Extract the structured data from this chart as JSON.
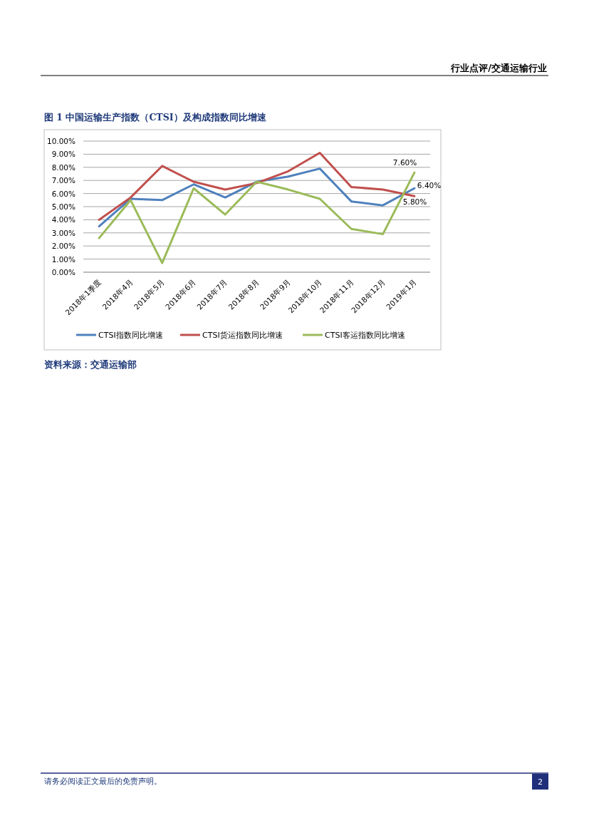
{
  "chart_data": {
    "type": "line",
    "title": "图 1 中国运输生产指数（CTSI）及构成指数同比增速",
    "categories": [
      "2018年1季度",
      "2018年4月",
      "2018年5月",
      "2018年6月",
      "2018年7月",
      "2018年8月",
      "2018年9月",
      "2018年10月",
      "2018年11月",
      "2018年12月",
      "2019年1月"
    ],
    "series": [
      {
        "name": "CTSI指数同比增速",
        "color": "#4f81bd",
        "values": [
          3.5,
          5.6,
          5.5,
          6.7,
          5.7,
          6.9,
          7.3,
          7.9,
          5.4,
          5.1,
          6.4
        ],
        "value_labels": [
          null,
          null,
          null,
          null,
          null,
          null,
          null,
          null,
          null,
          null,
          "6.40%"
        ]
      },
      {
        "name": "CTSI货运指数同比增速",
        "color": "#c0504d",
        "values": [
          4.0,
          5.7,
          8.1,
          6.9,
          6.3,
          6.8,
          7.7,
          9.1,
          6.5,
          6.3,
          5.8
        ],
        "value_labels": [
          null,
          null,
          null,
          null,
          null,
          null,
          null,
          null,
          null,
          null,
          "5.80%"
        ]
      },
      {
        "name": "CTSI客运指数同比增速",
        "color": "#9bbb59",
        "values": [
          2.6,
          5.5,
          0.7,
          6.4,
          4.4,
          6.9,
          6.3,
          5.6,
          3.3,
          2.9,
          7.6
        ],
        "value_labels": [
          null,
          null,
          null,
          null,
          null,
          null,
          null,
          null,
          null,
          null,
          "7.60%"
        ]
      }
    ],
    "ylim": [
      0,
      10
    ],
    "yticks": [
      {
        "value": 0,
        "label": "0.00%"
      },
      {
        "value": 1,
        "label": "1.00%"
      },
      {
        "value": 2,
        "label": "2.00%"
      },
      {
        "value": 3,
        "label": "3.00%"
      },
      {
        "value": 4,
        "label": "4.00%"
      },
      {
        "value": 5,
        "label": "5.00%"
      },
      {
        "value": 6,
        "label": "6.00%"
      },
      {
        "value": 7,
        "label": "7.00%"
      },
      {
        "value": 8,
        "label": "8.00%"
      },
      {
        "value": 9,
        "label": "9.00%"
      },
      {
        "value": 10,
        "label": "10.00%"
      }
    ],
    "grid": "y",
    "legend": "bottom",
    "marker": "none",
    "line_style": "solid",
    "annotations": [
      "行业点评/交通运输行业",
      "资料来源：交通运输部",
      "请务必阅读正文最后的免责声明。",
      "2"
    ]
  }
}
